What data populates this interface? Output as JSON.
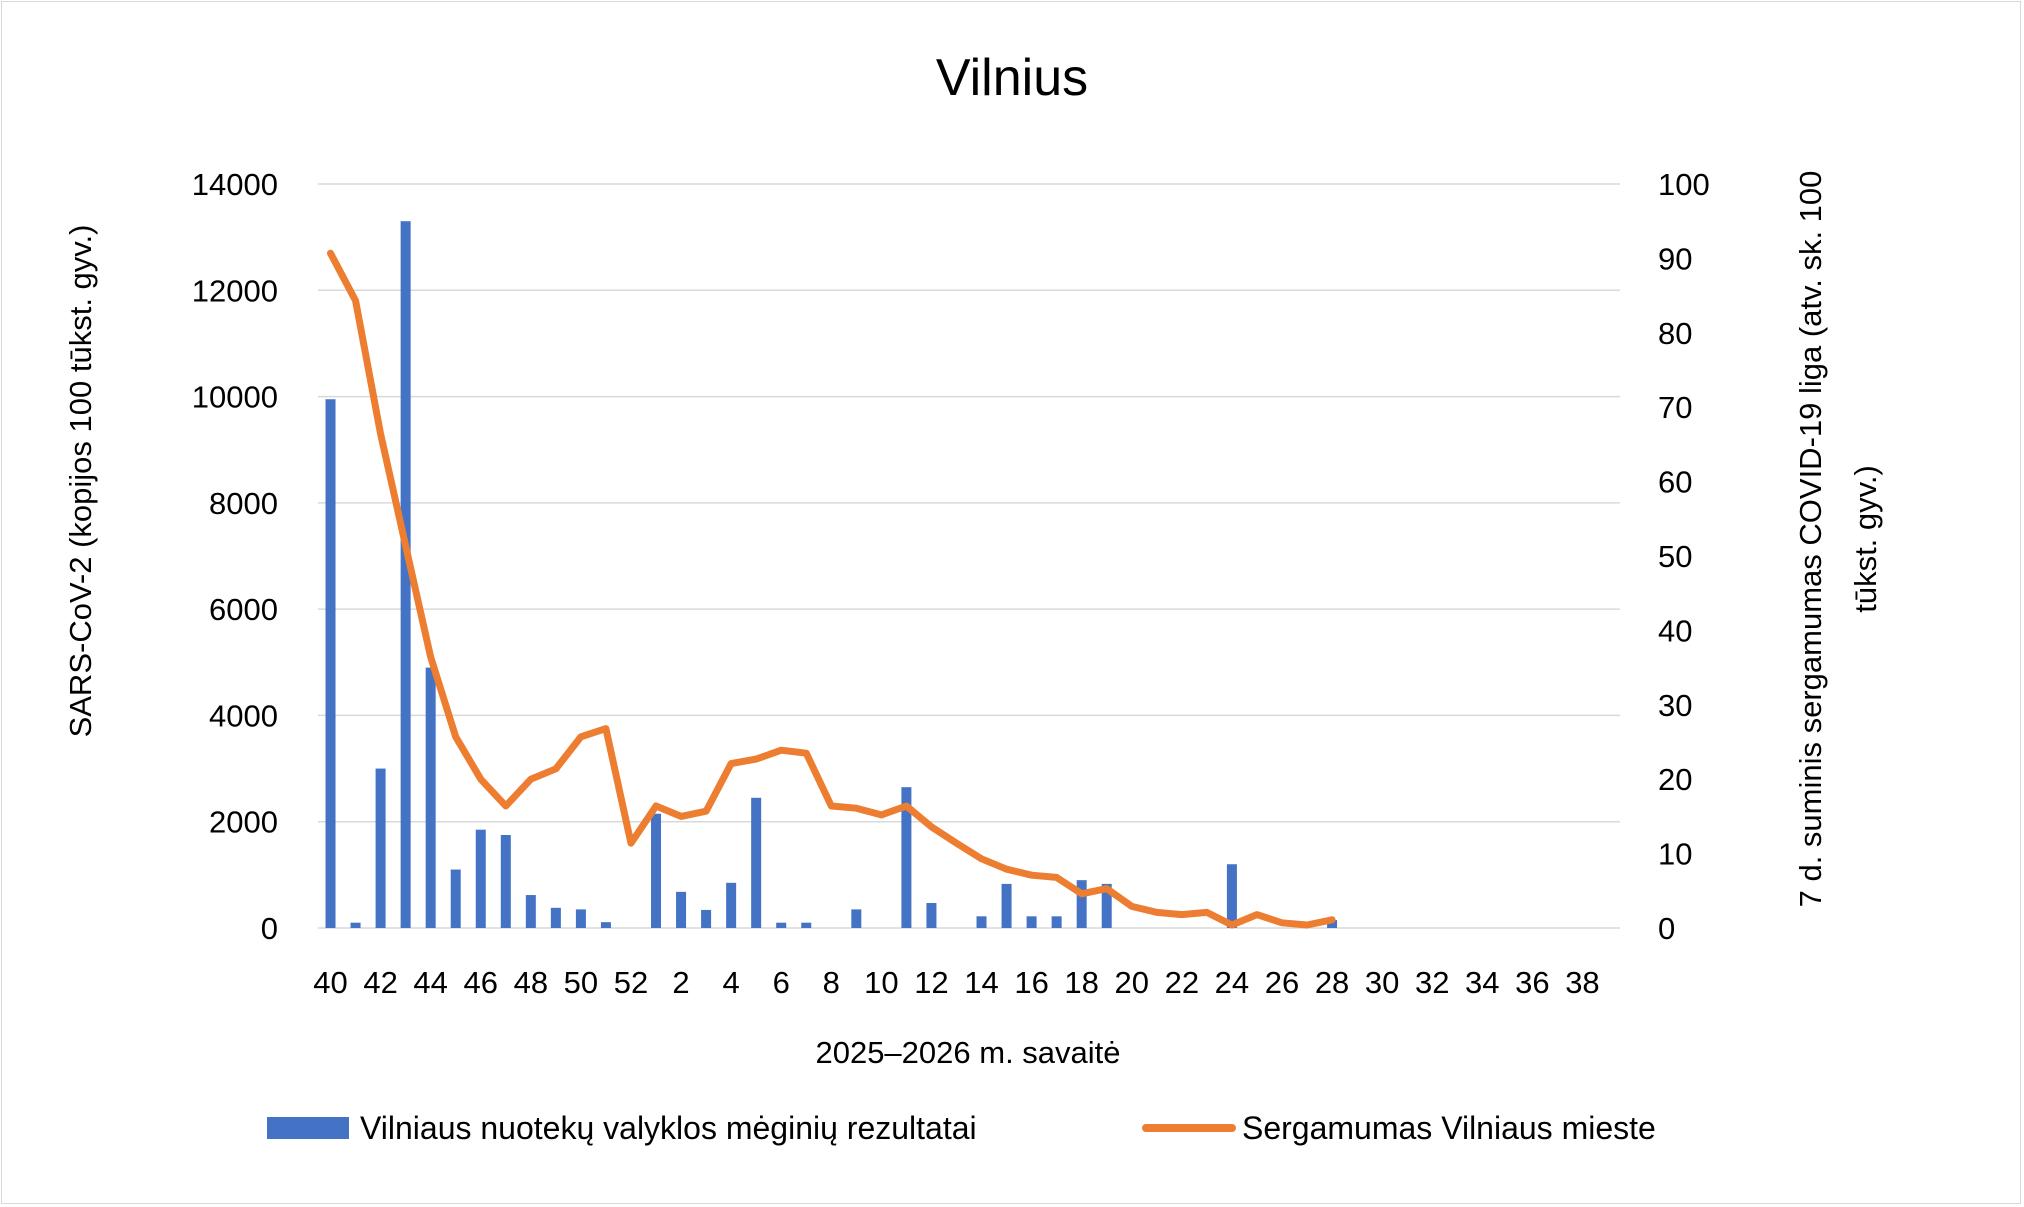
{
  "chart_data": {
    "type": "bar+line",
    "title": "Vilnius",
    "xlabel": "2025–2026 m. savaitė",
    "ylabel_left": "SARS-CoV-2  (kopijos 100 tūkst. gyv.)",
    "ylabel_right_lines": [
      "7 d. suminis sergamumas COVID-19 liga (atv. sk. 100",
      "tūkst. gyv.)"
    ],
    "ylim_left": [
      0,
      14000
    ],
    "ylim_right": [
      0,
      100
    ],
    "y_ticks_left": [
      "0",
      "2000",
      "4000",
      "6000",
      "8000",
      "10000",
      "12000",
      "14000"
    ],
    "y_ticks_right": [
      "0",
      "10",
      "20",
      "30",
      "40",
      "50",
      "60",
      "70",
      "80",
      "90",
      "100"
    ],
    "grid": true,
    "legend_position": "bottom",
    "weeks": [
      40,
      41,
      42,
      43,
      44,
      45,
      46,
      47,
      48,
      49,
      50,
      51,
      52,
      1,
      2,
      3,
      4,
      5,
      6,
      7,
      8,
      9,
      10,
      11,
      12,
      13,
      14,
      15,
      16,
      17,
      18,
      19,
      20,
      21,
      22,
      23,
      24,
      25,
      26,
      27,
      28,
      29,
      30,
      31,
      32,
      33,
      34,
      35,
      36,
      37,
      38,
      39
    ],
    "x_tick_labels": [
      "40",
      "42",
      "44",
      "46",
      "48",
      "50",
      "52",
      "2",
      "4",
      "6",
      "8",
      "10",
      "12",
      "14",
      "16",
      "18",
      "20",
      "22",
      "24",
      "26",
      "28",
      "30",
      "32",
      "34",
      "36",
      "38"
    ],
    "series": [
      {
        "name": "Vilniaus nuotekų valyklos mėginių rezultatai",
        "type": "bar",
        "axis": "left",
        "color": "#4472c4",
        "values": [
          9950,
          100,
          3000,
          13300,
          4900,
          1100,
          1850,
          1750,
          620,
          380,
          350,
          110,
          null,
          2150,
          680,
          340,
          850,
          2450,
          100,
          100,
          null,
          350,
          null,
          2650,
          470,
          null,
          220,
          830,
          220,
          220,
          900,
          830,
          null,
          null,
          null,
          null,
          1200,
          null,
          null,
          null,
          150,
          null,
          null,
          null,
          null,
          null,
          null,
          null,
          null,
          null,
          null,
          null
        ]
      },
      {
        "name": "Sergamumas Vilniaus mieste",
        "type": "line",
        "axis": "right",
        "color": "#ed7d31",
        "values": [
          90.7,
          84.3,
          66.4,
          51.4,
          36.4,
          25.7,
          20,
          16.4,
          20,
          21.4,
          25.7,
          26.8,
          11.4,
          16.4,
          15,
          15.7,
          22.1,
          22.7,
          23.9,
          23.5,
          16.4,
          16.1,
          15.2,
          16.4,
          13.6,
          11.4,
          9.3,
          7.9,
          7.1,
          6.8,
          4.6,
          5.3,
          2.9,
          2.1,
          1.8,
          2.1,
          0.4,
          1.8,
          0.7,
          0.4,
          1.1,
          null,
          null,
          null,
          null,
          null,
          null,
          null,
          null,
          null,
          null,
          null
        ]
      }
    ]
  }
}
